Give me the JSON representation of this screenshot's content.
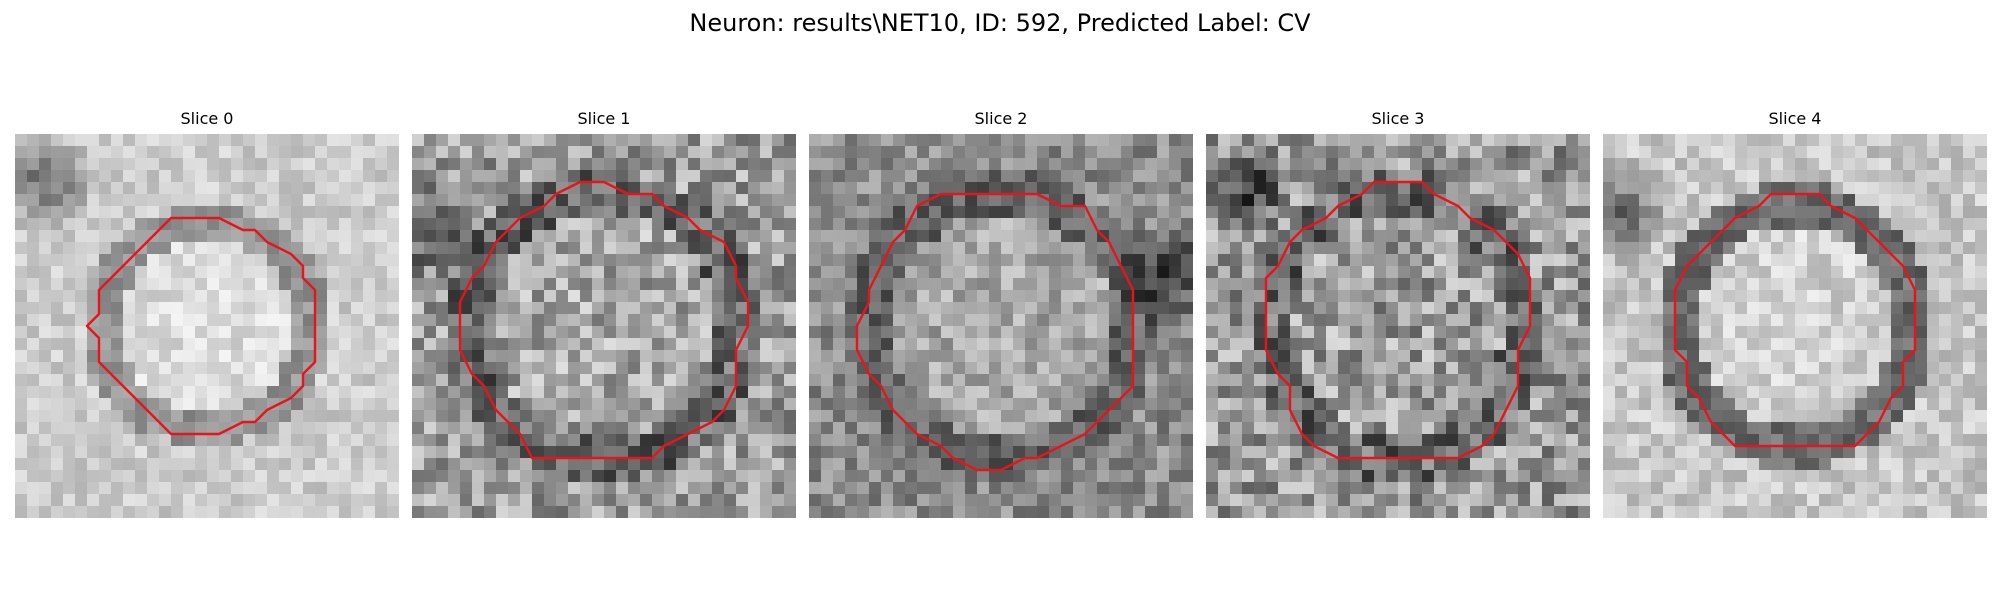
{
  "figure": {
    "title": "Neuron: results\\NET10, ID: 592, Predicted Label: CV"
  },
  "colors": {
    "contour": "#e8141c",
    "background": "#ffffff",
    "text": "#000000"
  },
  "panels": [
    {
      "title": "Slice 0",
      "seed": 11,
      "base": 0.8,
      "center": 0.86,
      "ring": 0.58,
      "noise": 0.1,
      "rx": 0.29,
      "ry": 0.28,
      "dark_blob": [
        0.08,
        0.12
      ]
    },
    {
      "title": "Slice 1",
      "seed": 23,
      "base": 0.62,
      "center": 0.66,
      "ring": 0.4,
      "noise": 0.22,
      "rx": 0.37,
      "ry": 0.36,
      "dark_blob": [
        0.06,
        0.25
      ]
    },
    {
      "title": "Slice 2",
      "seed": 37,
      "base": 0.55,
      "center": 0.66,
      "ring": 0.4,
      "noise": 0.16,
      "rx": 0.36,
      "ry": 0.36,
      "dark_blob": [
        0.93,
        0.36
      ]
    },
    {
      "title": "Slice 3",
      "seed": 41,
      "base": 0.6,
      "center": 0.62,
      "ring": 0.42,
      "noise": 0.24,
      "rx": 0.34,
      "ry": 0.37,
      "dark_blob": [
        0.1,
        0.15
      ]
    },
    {
      "title": "Slice 4",
      "seed": 53,
      "base": 0.78,
      "center": 0.82,
      "ring": 0.42,
      "noise": 0.12,
      "rx": 0.32,
      "ry": 0.33,
      "dark_blob": [
        0.05,
        0.2
      ]
    }
  ]
}
